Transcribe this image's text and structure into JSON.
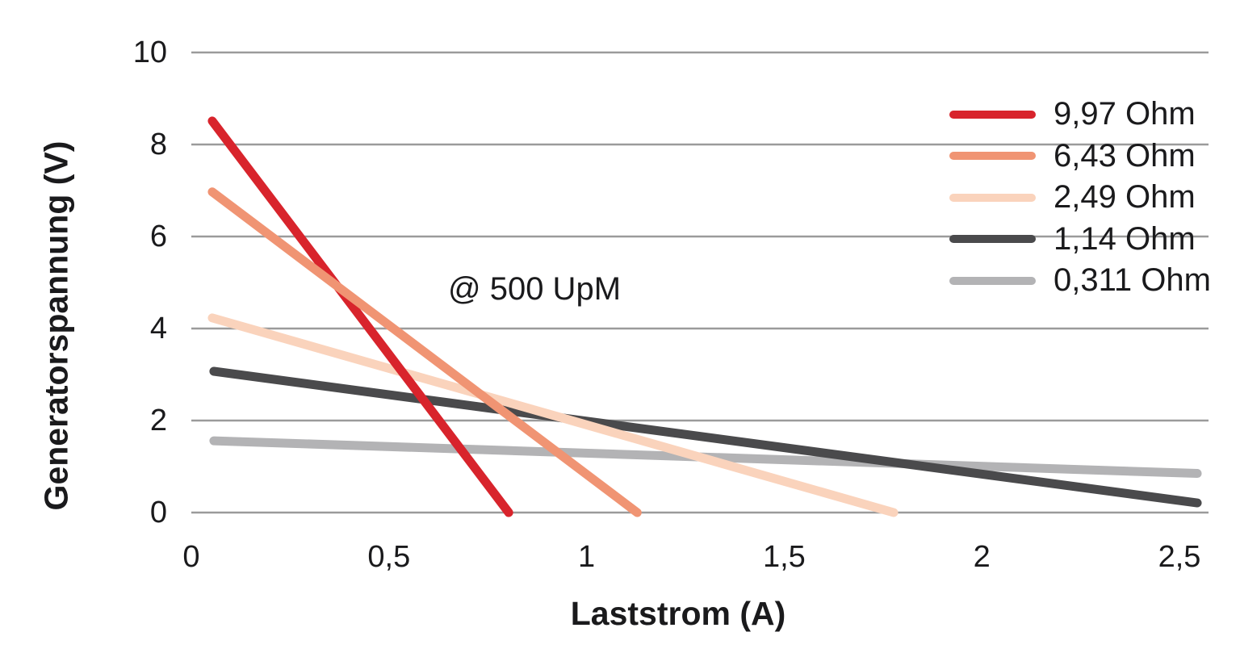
{
  "chart_data": {
    "type": "line",
    "title": "",
    "annotation": "@ 500 UpM",
    "xlabel": "Laststrom (A)",
    "ylabel": "Generatorspannung (V)",
    "xlim": [
      0,
      2.5735
    ],
    "ylim": [
      0,
      10
    ],
    "grid": "horizontal-only",
    "legend_position": "top-right",
    "x_ticks": [
      {
        "value": 0,
        "label": "0"
      },
      {
        "value": 0.5,
        "label": "0,5"
      },
      {
        "value": 1,
        "label": "1"
      },
      {
        "value": 1.5,
        "label": "1,5"
      },
      {
        "value": 2,
        "label": "2"
      },
      {
        "value": 2.5,
        "label": "2,5"
      }
    ],
    "y_ticks": [
      {
        "value": 0,
        "label": "0"
      },
      {
        "value": 2,
        "label": "2"
      },
      {
        "value": 4,
        "label": "4"
      },
      {
        "value": 6,
        "label": "6"
      },
      {
        "value": 8,
        "label": "8"
      },
      {
        "value": 10,
        "label": "10"
      }
    ],
    "series": [
      {
        "name": "9,97 Ohm",
        "color": "#d8242c",
        "points": [
          [
            0.053,
            8.51
          ],
          [
            0.803,
            0.0
          ]
        ]
      },
      {
        "name": "6,43 Ohm",
        "color": "#f09473",
        "points": [
          [
            0.053,
            6.97
          ],
          [
            1.128,
            0.0
          ]
        ]
      },
      {
        "name": "2,49 Ohm",
        "color": "#fad3bc",
        "points": [
          [
            0.053,
            4.23
          ],
          [
            1.777,
            0.0
          ]
        ]
      },
      {
        "name": "1,14 Ohm",
        "color": "#4a4a4c",
        "points": [
          [
            0.057,
            3.07
          ],
          [
            2.545,
            0.21
          ]
        ]
      },
      {
        "name": "0,311 Ohm",
        "color": "#b3b3b5",
        "points": [
          [
            0.057,
            1.56
          ],
          [
            2.545,
            0.85
          ]
        ]
      }
    ],
    "colors": {
      "gridline": "#9b9b9b",
      "text": "#1a1a1c",
      "background": "#ffffff"
    }
  }
}
